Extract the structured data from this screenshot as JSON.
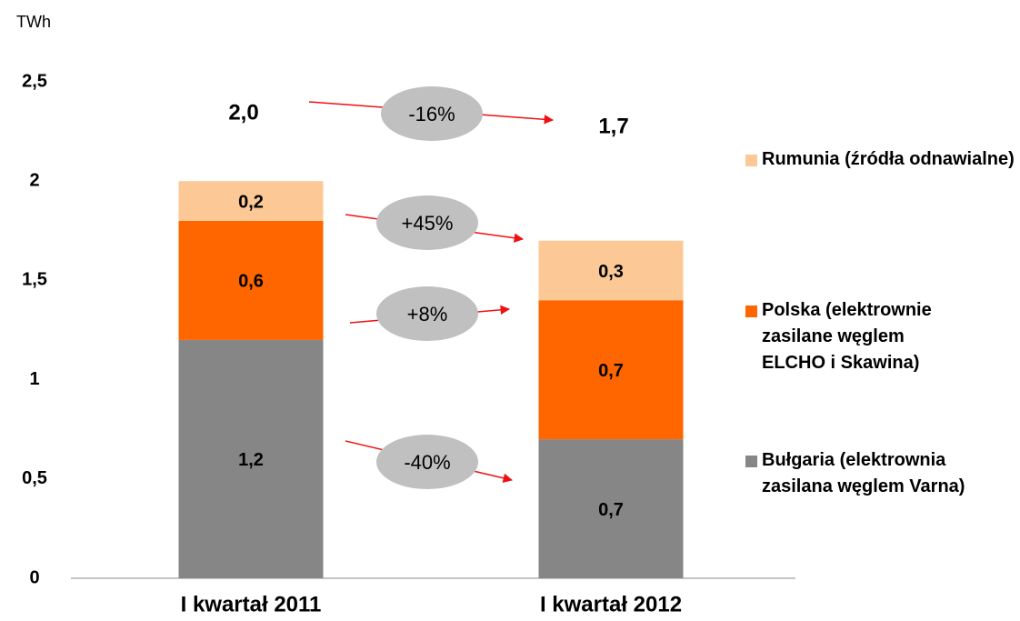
{
  "chart_data": {
    "type": "stacked_bar",
    "y_unit": "TWh",
    "categories": [
      "I kwartał 2011",
      "I kwartał 2012"
    ],
    "series": [
      {
        "name": "Bułgaria (elektrownia zasilana węglem Varna)",
        "color": "#868686",
        "values": [
          1.2,
          0.7
        ],
        "value_labels": [
          "1,2",
          "0,7"
        ]
      },
      {
        "name": "Polska (elektrownie zasilane węglem ELCHO i Skawina)",
        "color": "#ff6600",
        "values": [
          0.6,
          0.7
        ],
        "value_labels": [
          "0,6",
          "0,7"
        ]
      },
      {
        "name": "Rumunia (źródła odnawialne)",
        "color": "#fcc896",
        "values": [
          0.2,
          0.3
        ],
        "value_labels": [
          "0,2",
          "0,3"
        ]
      }
    ],
    "totals": {
      "values": [
        2.0,
        1.7
      ],
      "value_labels": [
        "2,0",
        "1,7"
      ]
    },
    "annotations": [
      "-16%",
      "+45%",
      "+8%",
      "-40%"
    ],
    "ylim": [
      0,
      2.5
    ],
    "yticks": [
      0,
      {
        "value": 0.5,
        "label": "0,5"
      },
      1,
      {
        "value": 1.5,
        "label": "1,5"
      },
      2,
      {
        "value": 2.5,
        "label": "2,5"
      }
    ],
    "legend": "right",
    "grid": false
  }
}
